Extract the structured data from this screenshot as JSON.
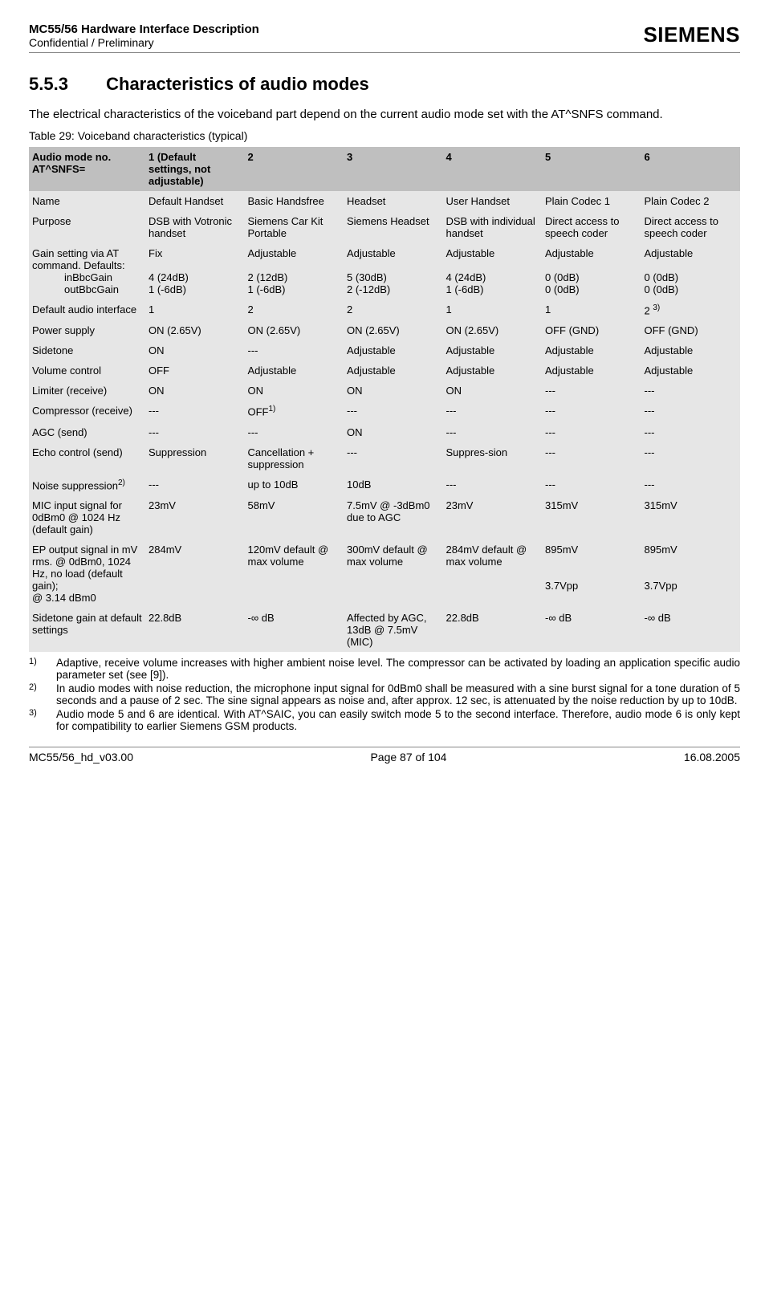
{
  "header": {
    "title": "MC55/56 Hardware Interface Description",
    "subtitle": "Confidential / Preliminary",
    "logo": "SIEMENS"
  },
  "section": {
    "number": "5.5.3",
    "title": "Characteristics of audio modes",
    "intro": "The electrical characteristics of the voiceband part depend on the current audio mode set with the AT^SNFS command.",
    "table_caption": "Table 29: Voiceband characteristics (typical)"
  },
  "table": {
    "header_row": {
      "label": "Audio mode no. AT^SNFS=",
      "cols": [
        "1 (Default settings, not adjustable)",
        "2",
        "3",
        "4",
        "5",
        "6"
      ]
    },
    "rows": [
      {
        "label": "Name",
        "cells": [
          "Default Handset",
          "Basic Handsfree",
          "Headset",
          "User Handset",
          "Plain Codec 1",
          "Plain Codec 2"
        ]
      },
      {
        "label": "Purpose",
        "cells": [
          "DSB with Votronic handset",
          "Siemens Car Kit Portable",
          "Siemens Headset",
          "DSB with individual handset",
          "Direct access to speech coder",
          "Direct access to speech coder"
        ]
      },
      {
        "label": "Default audio interface",
        "cells": [
          "1",
          "2",
          "2",
          "1",
          "1",
          "2 "
        ]
      },
      {
        "label": "Power supply",
        "cells": [
          "ON (2.65V)",
          "ON (2.65V)",
          "ON (2.65V)",
          "ON (2.65V)",
          "OFF (GND)",
          "OFF (GND)"
        ]
      },
      {
        "label": "Sidetone",
        "cells": [
          "ON",
          "---",
          "Adjustable",
          "Adjustable",
          "Adjustable",
          "Adjustable"
        ]
      },
      {
        "label": "Volume control",
        "cells": [
          "OFF",
          "Adjustable",
          "Adjustable",
          "Adjustable",
          "Adjustable",
          "Adjustable"
        ]
      },
      {
        "label": "Limiter (receive)",
        "cells": [
          "ON",
          "ON",
          "ON",
          "ON",
          "---",
          "---"
        ]
      },
      {
        "label": "Compressor (receive)",
        "cells": [
          "---",
          "OFF",
          "---",
          "---",
          "---",
          "---"
        ]
      },
      {
        "label": "AGC (send)",
        "cells": [
          "---",
          "---",
          "ON",
          "---",
          "---",
          "---"
        ]
      },
      {
        "label": "Echo control (send)",
        "cells": [
          "Suppression",
          "Cancellation + suppression",
          "---",
          "Suppres-sion",
          "---",
          "---"
        ]
      },
      {
        "label": "Noise suppression",
        "cells": [
          "---",
          "up to 10dB",
          "10dB",
          "---",
          "---",
          "---"
        ]
      },
      {
        "label": "MIC input signal for 0dBm0 @ 1024 Hz (default gain)",
        "cells": [
          "23mV",
          "58mV",
          "7.5mV @ -3dBm0 due to AGC",
          "23mV",
          "315mV",
          "315mV"
        ]
      },
      {
        "label": "Sidetone gain at default settings",
        "cells": [
          "22.8dB",
          "-∞ dB",
          "Affected by AGC, 13dB @ 7.5mV (MIC)",
          "22.8dB",
          "-∞ dB",
          "-∞ dB"
        ]
      }
    ],
    "gain": {
      "label": "Gain setting via AT command. Defaults:",
      "sub1_label": "inBbcGain",
      "sub2_label": "outBbcGain",
      "line1": [
        "Fix",
        "Adjustable",
        "Adjustable",
        "Adjustable",
        "Adjustable",
        "Adjustable"
      ],
      "line2": [
        "4 (24dB)",
        "2 (12dB)",
        "5 (30dB)",
        "4 (24dB)",
        "0 (0dB)",
        "0 (0dB)"
      ],
      "line3": [
        "1 (-6dB)",
        "1 (-6dB)",
        "2 (-12dB)",
        "1 (-6dB)",
        "0 (0dB)",
        "0 (0dB)"
      ]
    },
    "ep": {
      "label": "EP output signal in mV rms. @ 0dBm0, 1024 Hz, no load (default gain);",
      "label2": "@ 3.14 dBm0",
      "line1": [
        "284mV",
        "120mV default @ max volume",
        "300mV default @ max volume",
        "284mV default @ max volume",
        "895mV",
        "895mV"
      ],
      "line2": [
        "",
        "",
        "",
        "",
        "3.7Vpp",
        "3.7Vpp"
      ]
    }
  },
  "footnotes": {
    "f1": "Adaptive, receive volume increases with higher ambient noise level. The compressor can be activated by loading an application specific audio parameter set (see [9]).",
    "f2": "In audio modes with noise reduction, the microphone input signal for 0dBm0 shall be measured with a sine burst signal for a tone duration of 5 seconds and a pause of 2 sec. The sine signal appears as noise and, after approx. 12 sec, is attenuated by the noise reduction by up to 10dB.",
    "f3": "Audio mode 5 and 6 are identical. With AT^SAIC, you can easily switch mode 5 to the second interface. Therefore, audio mode 6 is only kept for compatibility to earlier Siemens GSM products."
  },
  "footer": {
    "left": "MC55/56_hd_v03.00",
    "center": "Page 87 of 104",
    "right": "16.08.2005"
  }
}
